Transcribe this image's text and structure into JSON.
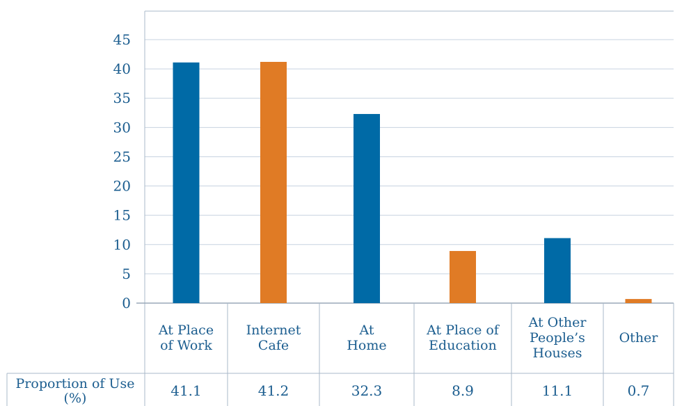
{
  "chart_data": {
    "type": "bar",
    "categories": [
      [
        "At Place",
        "of Work"
      ],
      [
        "Internet",
        "Cafe"
      ],
      [
        "At",
        "Home"
      ],
      [
        "At Place of",
        "Education"
      ],
      [
        "At Other",
        "People’s",
        "Houses"
      ],
      [
        "Other"
      ]
    ],
    "values": [
      41.1,
      41.2,
      32.3,
      8.9,
      11.1,
      0.7
    ],
    "value_labels": [
      "41.1",
      "41.2",
      "32.3",
      "8.9",
      "11.1",
      "0.7"
    ],
    "bar_colors": [
      "#006aa6",
      "#e07b25",
      "#006aa6",
      "#e07b25",
      "#006aa6",
      "#e07b25"
    ],
    "ylim": [
      0,
      45
    ],
    "yticks": [
      0,
      5,
      10,
      15,
      20,
      25,
      30,
      35,
      40,
      45
    ],
    "grid": true,
    "table_row_label": [
      "Proportion of Use",
      "(%)"
    ],
    "title": "",
    "xlabel": "",
    "ylabel": ""
  },
  "colors": {
    "text": "#1b5d8f",
    "grid": "#c7d3e0",
    "border": "#aab8c8"
  }
}
